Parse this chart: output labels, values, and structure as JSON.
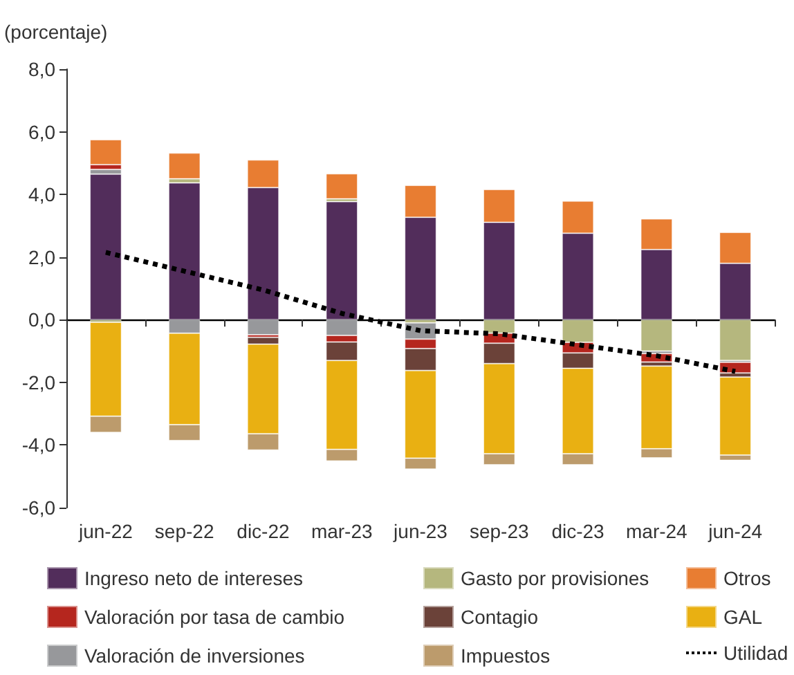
{
  "chart_data": {
    "type": "bar",
    "stacked": true,
    "ylabel": "(porcentaje)",
    "categories": [
      "jun-22",
      "sep-22",
      "dic-22",
      "mar-23",
      "jun-23",
      "sep-23",
      "dic-23",
      "mar-24",
      "jun-24"
    ],
    "ylim": [
      -6,
      8
    ],
    "yticks": [
      {
        "value": -6,
        "label": "-6,0"
      },
      {
        "value": -4,
        "label": "-4,0"
      },
      {
        "value": -2,
        "label": "-2,0"
      },
      {
        "value": 0,
        "label": "0,0"
      },
      {
        "value": 2,
        "label": "2,0"
      },
      {
        "value": 4,
        "label": "4,0"
      },
      {
        "value": 6,
        "label": "6,0"
      },
      {
        "value": 8,
        "label": "8,0"
      }
    ],
    "legend": "bottom",
    "series": [
      {
        "name": "Ingreso neto de intereses",
        "color": "#522d5b",
        "values": [
          4.65,
          4.37,
          4.22,
          3.77,
          3.27,
          3.11,
          2.76,
          2.24,
          1.8
        ]
      },
      {
        "name": "Gasto por provisiones",
        "color": "#b5b77e",
        "values": [
          -0.08,
          0.13,
          null,
          0.09,
          -0.1,
          -0.43,
          -0.72,
          -1.0,
          -1.3
        ]
      },
      {
        "name": "Valoración de inversiones",
        "color": "#97989b",
        "values": [
          0.15,
          -0.43,
          -0.48,
          -0.5,
          -0.52,
          null,
          null,
          -0.08,
          -0.06
        ]
      },
      {
        "name": "Valoración por tasa de cambio",
        "color": "#b5261e",
        "values": [
          0.15,
          null,
          -0.08,
          -0.21,
          -0.3,
          -0.32,
          -0.34,
          -0.27,
          -0.34
        ]
      },
      {
        "name": "Contagio",
        "color": "#6b4239",
        "values": [
          null,
          null,
          -0.22,
          -0.59,
          -0.7,
          -0.65,
          -0.49,
          -0.13,
          -0.13
        ]
      },
      {
        "name": "GAL",
        "color": "#e9b012",
        "values": [
          -3.0,
          -2.92,
          -2.86,
          -2.84,
          -2.8,
          -2.88,
          -2.73,
          -2.64,
          -2.49
        ]
      },
      {
        "name": "Impuestos",
        "color": "#bc9b6c",
        "values": [
          -0.52,
          -0.51,
          -0.52,
          -0.37,
          -0.35,
          -0.35,
          -0.35,
          -0.29,
          -0.17
        ]
      },
      {
        "name": "Otros",
        "color": "#e87d32",
        "values": [
          0.8,
          0.82,
          0.88,
          0.8,
          1.02,
          1.05,
          1.03,
          0.98,
          0.99
        ]
      },
      {
        "name": "Utilidad",
        "type": "line",
        "color": "#000000",
        "line_style": "dotted",
        "marker": "none",
        "values": [
          2.15,
          1.55,
          0.95,
          0.2,
          -0.35,
          -0.45,
          -0.8,
          -1.15,
          -1.65
        ]
      }
    ]
  }
}
